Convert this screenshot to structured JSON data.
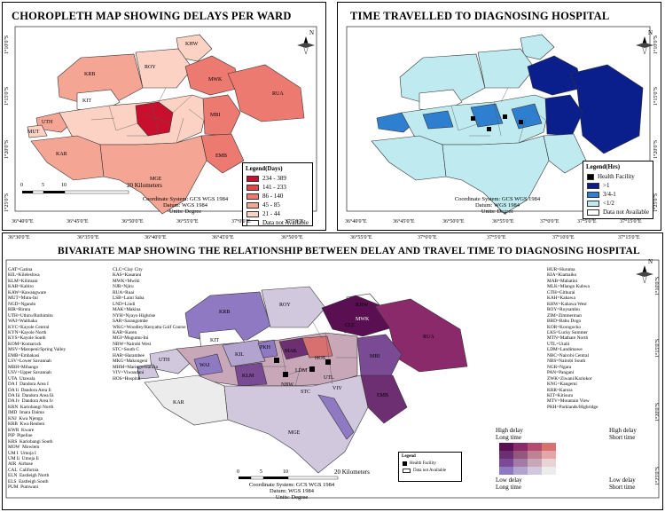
{
  "top_left": {
    "title": "CHOROPLETH MAP SHOWING DELAYS PER WARD",
    "legend_title": "Legend(Days)",
    "legend": [
      {
        "label": "234 - 389",
        "color": "#c8102e"
      },
      {
        "label": "141 - 233",
        "color": "#e0474a"
      },
      {
        "label": "86 - 140",
        "color": "#ec7a70"
      },
      {
        "label": "45 - 85",
        "color": "#f4a593"
      },
      {
        "label": "21 - 44",
        "color": "#fbd2c3"
      },
      {
        "label": "Data not Available",
        "color": "#ffffff"
      }
    ],
    "scale_ticks": [
      "0",
      "5",
      "10",
      "20 Kilometers"
    ],
    "footer": [
      "Coordinate System: GCS WGS 1984",
      "Datum: WGS 1984",
      "Units: Degree"
    ],
    "x_ticks": [
      "36°40'0\"E",
      "36°45'0\"E",
      "36°50'0\"E",
      "36°55'0\"E",
      "37°0'0\"E",
      "37°5'0\"E"
    ],
    "y_ticks": [
      "1°10'0\"S",
      "1°15'0\"S",
      "1°20'0\"S",
      "1°25'0\"S"
    ],
    "labels": [
      "KHW",
      "KRB",
      "ROY",
      "RUA",
      "KIT",
      "MWK",
      "UTH",
      "MUT",
      "MBI",
      "EMB",
      "KAR",
      "MGE"
    ]
  },
  "top_right": {
    "title": "TIME TRAVELLED TO DIAGNOSING HOSPITAL",
    "legend_title": "Legend(Hrs)",
    "legend": [
      {
        "label": "Health Facility",
        "color": "#000000"
      },
      {
        "label": ">1",
        "color": "#0a1e8c"
      },
      {
        "label": "3/4-1",
        "color": "#2e7fd0"
      },
      {
        "label": "<1/2",
        "color": "#bfeaf0"
      },
      {
        "label": "Data not Available",
        "color": "#ffffff"
      }
    ],
    "footer": [
      "Coordinate System: GCS WGS 1984",
      "Datum: WGS 1984",
      "Units: Degree"
    ],
    "x_ticks": [
      "36°40'0\"E",
      "36°45'0\"E",
      "36°50'0\"E",
      "36°55'0\"E",
      "37°0'0\"E",
      "37°5'0\"E",
      "37°15'0\"E"
    ],
    "y_ticks": [
      "1°10'0\"S",
      "1°15'0\"S",
      "1°20'0\"S",
      "1°25'0\"S"
    ]
  },
  "bottom": {
    "title": "BIVARIATE MAP SHOWING THE RELATIONSHIP BETWEEN DELAY AND TRAVEL TIME TO DIAGNOSING HOSPITAL",
    "x_ticks": [
      "36°30'0\"E",
      "36°35'0\"E",
      "36°40'0\"E",
      "36°45'0\"E",
      "36°50'0\"E",
      "36°55'0\"E",
      "37°0'0\"E",
      "37°5'0\"E",
      "37°10'0\"E",
      "37°15'0\"E"
    ],
    "y_ticks": [
      "1°10'0\"S",
      "1°15'0\"S",
      "1°20'0\"S",
      "1°25'0\"S"
    ],
    "abbr_col1": "GAT=Gatina\nKIL=Kileleshwa\nKLM=Kilimani\nKAB=Kabiro\nKAW=Kawangware\nMUT=Mutu-Ini\nNGD=Ngando\nRIR=Riruta\nUTH=Uthiru/Ruthimitu\nWAI=Waithaka\nKYC=Kayole Central\nKYN=Kayole North\nKYS=Kayole South\nKOM=Komarock\nMSV=Matopeni/Spring Valley\nEMB=Embakasi\nLSV=Lower Savannah\nMBH=Mihango\nUSV=Upper Savannah\nUTA  Utawala\nDA I  Dandora Area I\nDA Ii  Dandora Area Ii\nDA Iii  Dandora Area Iii\nDA Iv  Dandora Area Iv\nKRN  Kariobangi North\nIMD  Imara Daima\nKNJ  Kwa Njenga\nKRB  Kwa Reuben\nKWR  Kware\nPIP  Pipeline\nKRS  Kariobangi South\nMOW  Mowlem\nUM I  Umoja I\nUM Ii  Umoja Ii\nAIR  Airbase\nCAL  California\nELN  Eastleigh North\nELS  Eastleigh South\nPUM  Pumwani",
    "abbr_col2": "CLC=Clay City\nKAS=Kasarani\nMWK=Mwiki\nNJR=Njiru\nRUA=Ruai\nLSB=Laini Saba\nLND=Lindi\nMAK=Makina\nNYH=Nyayo Highrise\nSAR=Sarangombe\nWKG=Woodley/Kenyatta Golf Course\nKAR=Karen\nMGI=Mugumu-Ini\nNBW=Nairobi West\nSTC=South C\nHAR=Harambee\nMKG=Makongeni\nMHM=Maringo/Hamza\nVIV=Viwandani\nHOS=Hospital",
    "abbr_col3": "HUR=Huruma\nKIA=Kiamaiko\nMAB=Mabatini\nMLK=Mlango Kubwa\nGTH=Githurai\nKAH=Kahawa\nKHW=Kahawa West\nROY=Roysambu\nZIM=Zimmerman\nBBD=Babu Dogo\nKOR=Korogocho\nLKS=Lucky Summer\nMTN=Mathare North\nUTL=Utalii\nLDM=Landimawe\nNBC=Nairobi Central\nNBS=Nairobi South\nNGR=Ngara\nPAN=Pangani\nZWK=Ziwani/Kariokor\nKNG=Kangemi\nKRR=Karura\nKIT=Kitisuru\nMTV=Mountain View\nPKH=Parklands/Highridge",
    "legend_title": "Legend",
    "legend_items": [
      "Health Facility",
      "Data not Available"
    ],
    "scale_ticks": [
      "0",
      "5",
      "10",
      "20 Kilometers"
    ],
    "footer": [
      "Coordinate System: GCS WGS 1984",
      "Datum: WGS 1984",
      "Units: Degree"
    ],
    "bivar_labels": {
      "tl": [
        "High delay",
        "Long time"
      ],
      "tr": [
        "High delay",
        "Short time"
      ],
      "bl": [
        "Low delay",
        "Long time"
      ],
      "br": [
        "Low delay",
        "Short time"
      ]
    },
    "bivar_colors": [
      [
        "#5a0f52",
        "#8a2a6a",
        "#b34b6e",
        "#d87070"
      ],
      [
        "#6e2e72",
        "#96577f",
        "#bf8194",
        "#e3a7a8"
      ],
      [
        "#7b4a94",
        "#a27ba6",
        "#c7a7b8",
        "#ead3d4"
      ],
      [
        "#8f79c2",
        "#b2a3cf",
        "#d1c8de",
        "#ececec"
      ]
    ],
    "labels": [
      "KHW",
      "KRB",
      "ROY",
      "CLC",
      "MWK",
      "RUA",
      "KIT",
      "PKH",
      "KIL",
      "UTH",
      "WAI",
      "KLM",
      "MBI",
      "EMB",
      "KAR",
      "MGE",
      "STC",
      "NBW",
      "LDM",
      "HOS",
      "UTL",
      "VIV",
      "MAK"
    ]
  },
  "north_label": "N"
}
